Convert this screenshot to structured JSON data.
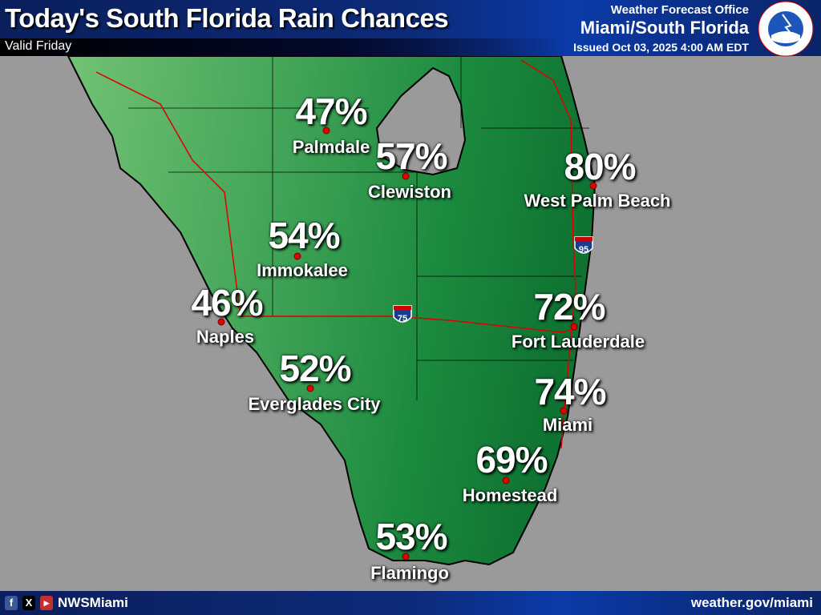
{
  "header": {
    "title": "Today's South Florida Rain Chances",
    "valid": "Valid Friday",
    "office_line1": "Weather Forecast Office",
    "office_line2": "Miami/South Florida",
    "issued": "Issued Oct 03, 2025 4:00 AM EDT",
    "logo_text": "NATIONAL WEATHER SERVICE"
  },
  "map": {
    "shields": [
      "95",
      "75"
    ],
    "cities": [
      {
        "name": "Palmdale",
        "pct": "47%"
      },
      {
        "name": "Clewiston",
        "pct": "57%"
      },
      {
        "name": "West Palm Beach",
        "pct": "80%"
      },
      {
        "name": "Immokalee",
        "pct": "54%"
      },
      {
        "name": "Naples",
        "pct": "46%"
      },
      {
        "name": "Fort Lauderdale",
        "pct": "72%"
      },
      {
        "name": "Everglades City",
        "pct": "52%"
      },
      {
        "name": "Miami",
        "pct": "74%"
      },
      {
        "name": "Homestead",
        "pct": "69%"
      },
      {
        "name": "Flamingo",
        "pct": "53%"
      }
    ]
  },
  "footer": {
    "handle": "NWSMiami",
    "url": "weather.gov/miami",
    "social": [
      "facebook-icon",
      "x-icon",
      "youtube-icon"
    ]
  },
  "colors": {
    "low": "#6cc070",
    "high": "#117a35",
    "dot": "#e00000"
  }
}
